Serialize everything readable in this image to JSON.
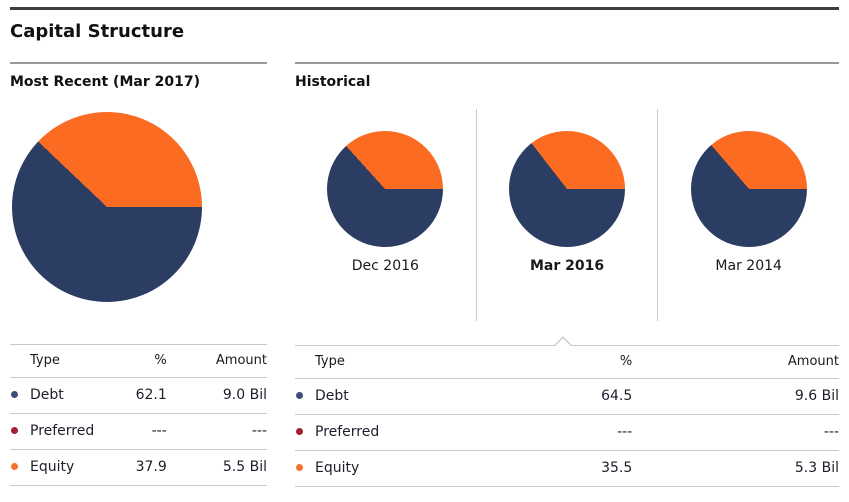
{
  "title": "Capital Structure",
  "colors": {
    "debt": "#2b3d63",
    "preferred": "#a41e35",
    "equity": "#fb6b22"
  },
  "most_recent": {
    "heading": "Most Recent (Mar 2017)",
    "pie": {
      "debt_pct": 62.1,
      "equity_pct": 37.9
    },
    "table": {
      "headers": [
        "Type",
        "%",
        "Amount"
      ],
      "rows": [
        {
          "type": "Debt",
          "pct": "62.1",
          "amount": "9.0 Bil",
          "color": "#3e4d79"
        },
        {
          "type": "Preferred",
          "pct": "---",
          "amount": "---",
          "color": "#a41e35"
        },
        {
          "type": "Equity",
          "pct": "37.9",
          "amount": "5.5 Bil",
          "color": "#f2712c"
        }
      ]
    }
  },
  "historical": {
    "heading": "Historical",
    "periods": [
      {
        "label": "Dec 2016",
        "debt_pct": 63.3,
        "equity_pct": 36.7,
        "selected": false
      },
      {
        "label": "Mar 2016",
        "debt_pct": 64.5,
        "equity_pct": 35.5,
        "selected": true
      },
      {
        "label": "Mar 2014",
        "debt_pct": 63.7,
        "equity_pct": 36.3,
        "selected": false
      }
    ],
    "table": {
      "headers": [
        "Type",
        "%",
        "Amount"
      ],
      "rows": [
        {
          "type": "Debt",
          "pct": "64.5",
          "amount": "9.6 Bil",
          "color": "#3e4d79"
        },
        {
          "type": "Preferred",
          "pct": "---",
          "amount": "---",
          "color": "#a41e35"
        },
        {
          "type": "Equity",
          "pct": "35.5",
          "amount": "5.3 Bil",
          "color": "#f2712c"
        }
      ]
    }
  },
  "chart_data": [
    {
      "type": "pie",
      "title": "Most Recent (Mar 2017)",
      "labels": [
        "Debt",
        "Preferred",
        "Equity"
      ],
      "values": [
        62.1,
        0,
        37.9
      ],
      "amounts": [
        "9.0 Bil",
        "---",
        "5.5 Bil"
      ],
      "colors": [
        "#2b3d63",
        "#a41e35",
        "#fb6b22"
      ],
      "start_angle": "3 o'clock, debt drawn clockwise"
    },
    {
      "type": "pie",
      "title": "Dec 2016",
      "labels": [
        "Debt",
        "Equity"
      ],
      "values": [
        63.3,
        36.7
      ],
      "colors": [
        "#2b3d63",
        "#fb6b22"
      ],
      "note": "values estimated from pie, no table shown"
    },
    {
      "type": "pie",
      "title": "Mar 2016",
      "labels": [
        "Debt",
        "Preferred",
        "Equity"
      ],
      "values": [
        64.5,
        0,
        35.5
      ],
      "amounts": [
        "9.6 Bil",
        "---",
        "5.3 Bil"
      ],
      "colors": [
        "#2b3d63",
        "#a41e35",
        "#fb6b22"
      ],
      "selected": true
    },
    {
      "type": "pie",
      "title": "Mar 2014",
      "labels": [
        "Debt",
        "Equity"
      ],
      "values": [
        63.7,
        36.3
      ],
      "colors": [
        "#2b3d63",
        "#fb6b22"
      ],
      "note": "values estimated from pie, no table shown"
    }
  ]
}
